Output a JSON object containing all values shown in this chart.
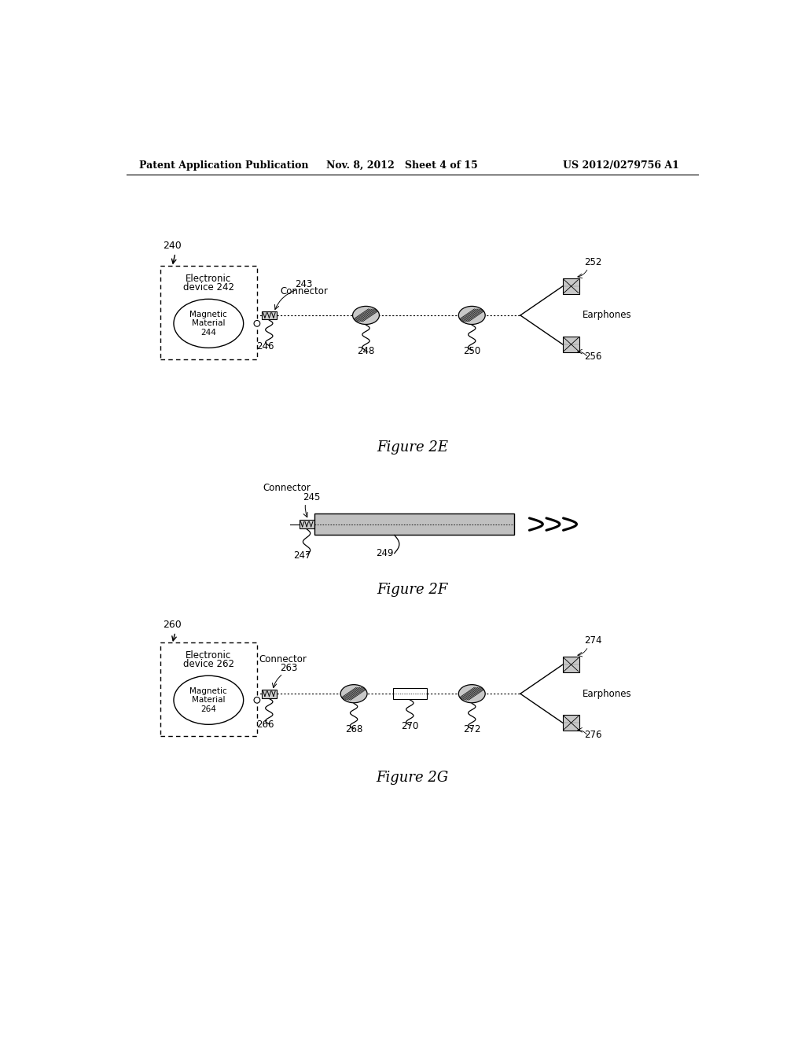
{
  "bg_color": "#ffffff",
  "header_left": "Patent Application Publication",
  "header_mid": "Nov. 8, 2012   Sheet 4 of 15",
  "header_right": "US 2012/0279756 A1",
  "fig2e_label": "Figure 2E",
  "fig2f_label": "Figure 2F",
  "fig2g_label": "Figure 2G",
  "fig2e_ref": "240",
  "fig2e_device_title1": "Electronic",
  "fig2e_device_title2": "device 242",
  "fig2e_mag_label": "Magnetic\nMaterial\n244",
  "fig2e_connector_label": "Connector",
  "fig2e_243": "243",
  "fig2e_246": "246",
  "fig2e_248": "248",
  "fig2e_250": "250",
  "fig2e_252": "252",
  "fig2e_256": "256",
  "fig2e_earphones": "Earphones",
  "fig2f_connector": "Connector",
  "fig2f_245": "245",
  "fig2f_247": "247",
  "fig2f_249": "249",
  "fig2g_ref": "260",
  "fig2g_device_title1": "Electronic",
  "fig2g_device_title2": "device 262",
  "fig2g_mag_label": "Magnetic\nMaterial\n264",
  "fig2g_connector": "Connector",
  "fig2g_263": "263",
  "fig2g_266": "266",
  "fig2g_268": "268",
  "fig2g_270": "270",
  "fig2g_272": "272",
  "fig2g_274": "274",
  "fig2g_276": "276",
  "fig2g_earphones": "Earphones",
  "line_color": "#000000",
  "text_color": "#000000",
  "gray_fill": "#c0c0c0",
  "light_gray": "#d8d8d8",
  "hatch_gray": "#b0b0b0"
}
